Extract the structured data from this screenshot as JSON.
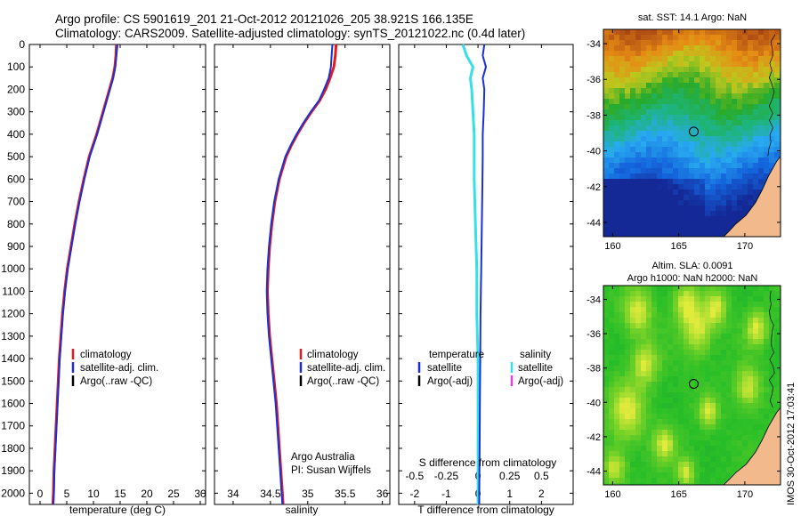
{
  "header": {
    "title_line1": "Argo profile: CS 5901619_201 21-Oct-2012 20121026_205 38.921S 166.135E",
    "title_line2": "Climatology: CARS2009. Satellite-adjusted climatology: synTS_20121022.nc (0.4d later)"
  },
  "side_label": "IMOS 30-Oct-2012 17:03:41",
  "colors": {
    "climatology": "#e41a1c",
    "satellite": "#1a2fd6",
    "argo": "#000000",
    "temp_satellite_diff": "#1a2fd6",
    "sal_satellite_diff": "#35e0e8",
    "sal_argo_diff": "#e040e0",
    "land": "#f2b98d"
  },
  "chart_data": [
    {
      "type": "line",
      "name": "temperature-profile",
      "xlabel": "temperature (deg C)",
      "ylabel": "",
      "xlim": [
        -2,
        31
      ],
      "ylim": [
        2050,
        0
      ],
      "x_ticks": [
        0,
        5,
        10,
        15,
        20,
        25,
        30
      ],
      "y_ticks": [
        0,
        100,
        200,
        300,
        400,
        500,
        600,
        700,
        800,
        900,
        1000,
        1100,
        1200,
        1300,
        1400,
        1500,
        1600,
        1700,
        1800,
        1900,
        2000
      ],
      "legend": {
        "items": [
          "climatology",
          "satellite-adj. clim.",
          "Argo(..raw -QC)"
        ],
        "placement": "lower-right"
      },
      "depth": [
        0,
        50,
        100,
        150,
        200,
        250,
        300,
        350,
        400,
        450,
        500,
        600,
        700,
        800,
        900,
        1000,
        1100,
        1200,
        1300,
        1400,
        1500,
        1600,
        1700,
        1800,
        1900,
        2000,
        2050
      ],
      "series": [
        {
          "name": "climatology",
          "values": [
            14.3,
            14.2,
            14.0,
            13.6,
            13.0,
            12.4,
            11.8,
            11.2,
            10.6,
            9.9,
            9.2,
            8.2,
            7.3,
            6.5,
            5.8,
            5.1,
            4.6,
            4.2,
            3.9,
            3.6,
            3.4,
            3.2,
            3.0,
            2.8,
            2.6,
            2.5,
            2.4
          ]
        },
        {
          "name": "satellite-adj. clim.",
          "values": [
            14.5,
            14.3,
            14.1,
            13.7,
            13.1,
            12.5,
            11.9,
            11.3,
            10.7,
            10.0,
            9.3,
            8.3,
            7.4,
            6.6,
            5.9,
            5.2,
            4.7,
            4.3,
            4.0,
            3.7,
            3.5,
            3.3,
            3.1,
            2.9,
            2.7,
            2.6,
            2.5
          ]
        }
      ]
    },
    {
      "type": "line",
      "name": "salinity-profile",
      "xlabel": "salinity",
      "ylabel": "",
      "xlim": [
        33.75,
        36.1
      ],
      "ylim": [
        2050,
        0
      ],
      "x_ticks": [
        34,
        34.5,
        35,
        35.5,
        36
      ],
      "legend": {
        "items": [
          "climatology",
          "satellite-adj. clim.",
          "Argo(..raw -QC)"
        ],
        "placement": "lower-right"
      },
      "annotation": [
        "Argo Australia",
        "PI: Susan Wijffels"
      ],
      "depth": [
        0,
        50,
        100,
        150,
        200,
        250,
        300,
        350,
        400,
        450,
        500,
        600,
        700,
        800,
        900,
        1000,
        1100,
        1200,
        1300,
        1400,
        1500,
        1600,
        1700,
        1800,
        1900,
        2000,
        2050
      ],
      "series": [
        {
          "name": "climatology",
          "values": [
            35.38,
            35.37,
            35.35,
            35.3,
            35.24,
            35.16,
            35.05,
            34.95,
            34.86,
            34.78,
            34.71,
            34.62,
            34.56,
            34.52,
            34.49,
            34.47,
            34.46,
            34.47,
            34.49,
            34.52,
            34.55,
            34.58,
            34.6,
            34.62,
            34.64,
            34.66,
            34.67
          ]
        },
        {
          "name": "satellite-adj. clim.",
          "values": [
            35.33,
            35.32,
            35.31,
            35.28,
            35.22,
            35.15,
            35.04,
            34.94,
            34.85,
            34.77,
            34.7,
            34.61,
            34.55,
            34.51,
            34.48,
            34.46,
            34.45,
            34.46,
            34.48,
            34.51,
            34.54,
            34.57,
            34.59,
            34.61,
            34.63,
            34.65,
            34.66
          ]
        }
      ]
    },
    {
      "type": "line",
      "name": "difference-profile",
      "xlabel": "T difference from climatology",
      "top_axis_label": "S difference from climatology",
      "xlim": [
        -2.5,
        3.0
      ],
      "top_xlim": [
        -0.625,
        0.75
      ],
      "ylim": [
        2050,
        0
      ],
      "x_ticks": [
        -2,
        -1,
        0,
        1,
        2
      ],
      "top_ticks": [
        "-0.5",
        "-0.25",
        "0",
        "0.25",
        "0.5"
      ],
      "legend": {
        "temperature": {
          "heading": "temperature",
          "items": [
            "satellite",
            "Argo(-adj)"
          ]
        },
        "salinity": {
          "heading": "salinity",
          "items": [
            "satellite",
            "Argo(-adj)"
          ]
        }
      },
      "depth": [
        0,
        50,
        100,
        150,
        200,
        300,
        400,
        500,
        600,
        800,
        1000,
        1200,
        1400,
        1600,
        1800,
        2000,
        2050
      ],
      "series": [
        {
          "name": "temperature satellite",
          "values": [
            0.2,
            0.15,
            0.25,
            0.15,
            0.2,
            0.18,
            0.15,
            0.15,
            0.14,
            0.12,
            0.1,
            0.08,
            0.07,
            0.06,
            0.05,
            0.04,
            0.04
          ]
        },
        {
          "name": "salinity satellite",
          "values": [
            -0.12,
            -0.09,
            -0.04,
            -0.06,
            -0.05,
            -0.04,
            -0.03,
            -0.03,
            -0.03,
            -0.02,
            -0.01,
            -0.01,
            0.0,
            0.0,
            0.0,
            0.0,
            0.0
          ]
        }
      ]
    },
    {
      "type": "heatmap",
      "name": "sst-map",
      "title": "sat. SST: 14.1  Argo: NaN",
      "xlim": [
        159.3,
        172.7
      ],
      "ylim": [
        -44.8,
        -33.2
      ],
      "x_ticks": [
        160,
        165,
        170
      ],
      "y_ticks": [
        -34,
        -36,
        -38,
        -40,
        -42,
        -44
      ],
      "marker": {
        "lon": 166.135,
        "lat": -38.921
      }
    },
    {
      "type": "heatmap",
      "name": "sla-map",
      "title_line1": "Altim. SLA: 0.0091",
      "title_line2": "Argo h1000: NaN  h2000: NaN",
      "xlim": [
        159.3,
        172.7
      ],
      "ylim": [
        -44.8,
        -33.2
      ],
      "x_ticks": [
        160,
        165,
        170
      ],
      "y_ticks": [
        -34,
        -36,
        -38,
        -40,
        -42,
        -44
      ],
      "marker": {
        "lon": 166.135,
        "lat": -38.921
      }
    }
  ]
}
